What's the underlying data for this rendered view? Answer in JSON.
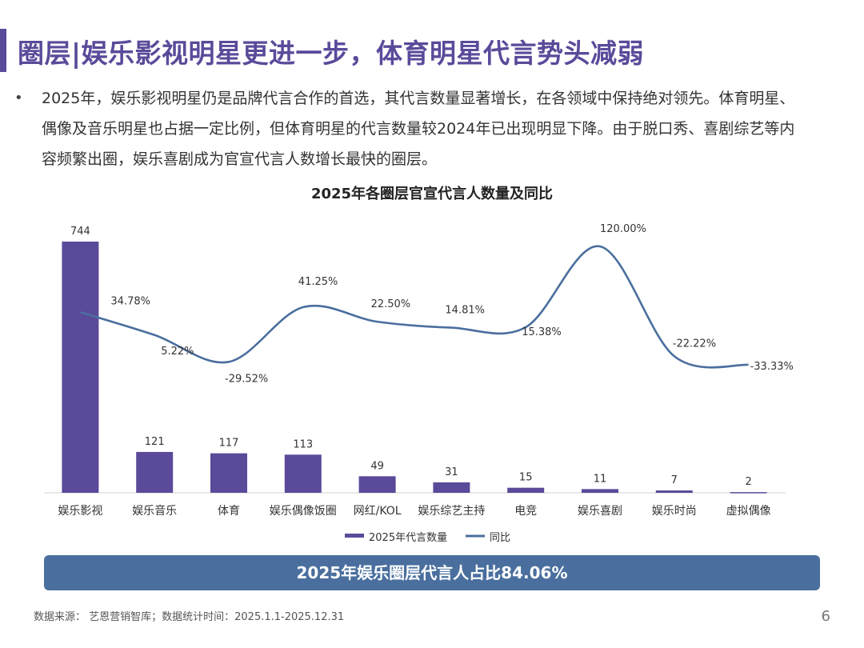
{
  "header": {
    "title": "圈层|娱乐影视明星更进一步，体育明星代言势头减弱"
  },
  "bullet": {
    "symbol": "•",
    "text": "2025年，娱乐影视明星仍是品牌代言合作的首选，其代言数量显著增长，在各领域中保持绝对领先。体育明星、偶像及音乐明星也占据一定比例，但体育明星的代言数量较2024年已出现明显下降。由于脱口秀、喜剧综艺等内容频繁出圈，娱乐喜剧成为官宣代言人数增长最快的圈层。"
  },
  "chart_data": {
    "type": "bar+line",
    "title": "2025年各圈层官宣代言人数量及同比",
    "categories": [
      "娱乐影视",
      "娱乐音乐",
      "体育",
      "娱乐偶像饭圈",
      "网红/KOL",
      "娱乐综艺主持",
      "电竞",
      "娱乐喜剧",
      "娱乐时尚",
      "虚拟偶像"
    ],
    "series": [
      {
        "name": "2025年代言数量",
        "type": "bar",
        "values": [
          744,
          121,
          117,
          113,
          49,
          31,
          15,
          11,
          7,
          2
        ],
        "labels": [
          "744",
          "121",
          "117",
          "113",
          "49",
          "31",
          "15",
          "11",
          "7",
          "2"
        ]
      },
      {
        "name": "同比",
        "type": "line",
        "values": [
          34.78,
          5.22,
          -29.52,
          41.25,
          22.5,
          14.81,
          15.38,
          120.0,
          -22.22,
          -33.33
        ],
        "labels": [
          "34.78%",
          "5.22%",
          "-29.52%",
          "41.25%",
          "22.50%",
          "14.81%",
          "15.38%",
          "120.00%",
          "-22.22%",
          "-33.33%"
        ]
      }
    ],
    "bar_ylim": [
      0,
      744
    ],
    "line_ylim": [
      -40,
      120
    ],
    "legend": [
      "2025年代言数量",
      "同比"
    ],
    "colors": {
      "bar": "#5b4a9a",
      "line": "#4a6f9e"
    }
  },
  "banner": {
    "text": "2025年娱乐圈层代言人占比84.06%"
  },
  "footer": {
    "source": "数据来源：   艺恩营销智库；数据统计时间：2025.1.1-2025.12.31",
    "page": "6"
  }
}
